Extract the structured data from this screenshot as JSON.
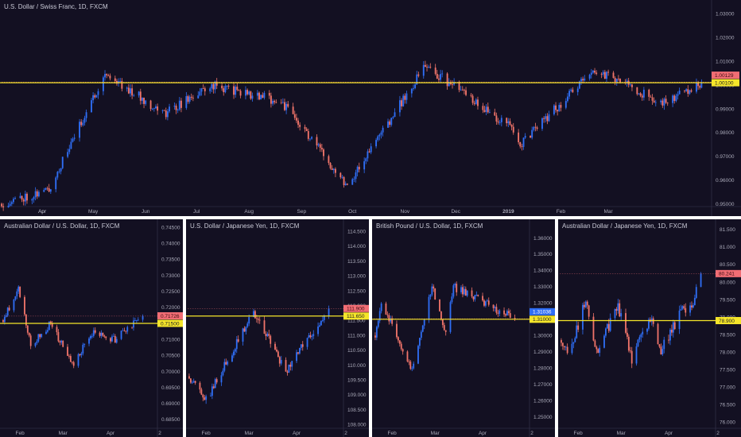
{
  "colors": {
    "background": "#131022",
    "up_candle": "#2f6ef5",
    "down_candle": "#f0746a",
    "level_line": "#f5e52a",
    "price_tag": "#f16d74",
    "price_tag_blue": "#2f6ef5",
    "divider": "#ffffff"
  },
  "charts": [
    {
      "id": "usdchf",
      "title": "U.S. Dollar / Swiss Franc, 1D, FXCM",
      "y_ticks": [
        "1.03000",
        "1.02000",
        "1.01000",
        "1.00000",
        "0.99000",
        "0.98000",
        "0.97000",
        "0.96000",
        "0.95000"
      ],
      "x_labels": [
        "Apr",
        "May",
        "Jun",
        "Jul",
        "Aug",
        "Sep",
        "Oct",
        "Nov",
        "Dec",
        "2019",
        "Feb",
        "Mar",
        "Apr"
      ],
      "level_tag": "1.00100",
      "price_tag": "1.00129",
      "chart_data": {
        "type": "candlestick",
        "ylim": [
          0.9495,
          1.0345
        ],
        "level": 1.001,
        "last_price": 1.00129,
        "x_range": [
          "2018-03-08",
          "2019-04-30"
        ],
        "segments": [
          {
            "from": "2018-03-08",
            "to": "2018-04-05",
            "start": 0.95,
            "end": 0.956
          },
          {
            "from": "2018-04-05",
            "to": "2018-05-08",
            "start": 0.956,
            "end": 1.005
          },
          {
            "from": "2018-05-08",
            "to": "2018-06-12",
            "start": 1.005,
            "end": 0.988
          },
          {
            "from": "2018-06-12",
            "to": "2018-07-10",
            "start": 0.988,
            "end": 1.0
          },
          {
            "from": "2018-07-10",
            "to": "2018-08-20",
            "start": 1.0,
            "end": 0.993
          },
          {
            "from": "2018-08-20",
            "to": "2018-09-28",
            "start": 0.993,
            "end": 0.958
          },
          {
            "from": "2018-09-28",
            "to": "2018-11-13",
            "start": 0.958,
            "end": 1.008
          },
          {
            "from": "2018-11-13",
            "to": "2019-01-03",
            "start": 1.008,
            "end": 0.982
          },
          {
            "from": "2019-01-03",
            "to": "2019-01-08",
            "start": 0.982,
            "end": 0.975
          },
          {
            "from": "2019-01-08",
            "to": "2019-02-20",
            "start": 0.975,
            "end": 1.006
          },
          {
            "from": "2019-02-20",
            "to": "2019-03-08",
            "start": 1.006,
            "end": 1.002
          },
          {
            "from": "2019-03-08",
            "to": "2019-04-01",
            "start": 1.002,
            "end": 0.992
          },
          {
            "from": "2019-04-01",
            "to": "2019-04-25",
            "start": 0.992,
            "end": 1.0013
          }
        ]
      }
    },
    {
      "id": "audusd",
      "title": "Australian Dollar / U.S. Dollar, 1D, FXCM",
      "y_ticks": [
        "0.74500",
        "0.74000",
        "0.73500",
        "0.73000",
        "0.72500",
        "0.72000",
        "0.71500",
        "0.71000",
        "0.70500",
        "0.70000",
        "0.69500",
        "0.69000",
        "0.68500"
      ],
      "x_labels": [
        "Feb",
        "Mar",
        "Apr",
        "2"
      ],
      "level_tag": "0.71500",
      "price_tag": "0.71726",
      "chart_data": {
        "type": "candlestick",
        "ylim": [
          0.6825,
          0.7465
        ],
        "level": 0.715,
        "last_price": 0.71726,
        "x_range": [
          "2019-01-20",
          "2019-04-30"
        ],
        "segments": [
          {
            "from": "2019-01-20",
            "to": "2019-01-31",
            "start": 0.715,
            "end": 0.726
          },
          {
            "from": "2019-01-31",
            "to": "2019-02-08",
            "start": 0.726,
            "end": 0.708
          },
          {
            "from": "2019-02-08",
            "to": "2019-02-21",
            "start": 0.708,
            "end": 0.715
          },
          {
            "from": "2019-02-21",
            "to": "2019-03-07",
            "start": 0.715,
            "end": 0.702
          },
          {
            "from": "2019-03-07",
            "to": "2019-03-20",
            "start": 0.702,
            "end": 0.712
          },
          {
            "from": "2019-03-20",
            "to": "2019-04-04",
            "start": 0.712,
            "end": 0.71
          },
          {
            "from": "2019-04-04",
            "to": "2019-04-22",
            "start": 0.71,
            "end": 0.7173
          }
        ]
      }
    },
    {
      "id": "usdjpy",
      "title": "U.S. Dollar / Japanese Yen, 1D, FXCM",
      "y_ticks": [
        "114.500",
        "114.000",
        "113.500",
        "113.000",
        "112.500",
        "112.000",
        "111.500",
        "111.000",
        "110.500",
        "110.000",
        "109.500",
        "109.000",
        "108.500",
        "108.000"
      ],
      "x_labels": [
        "Feb",
        "Mar",
        "Apr",
        "2"
      ],
      "level_tag": "111.650",
      "price_tag": "111.900",
      "chart_data": {
        "type": "candlestick",
        "ylim": [
          107.9,
          114.8
        ],
        "level": 111.65,
        "last_price": 111.9,
        "x_range": [
          "2019-01-20",
          "2019-04-30"
        ],
        "segments": [
          {
            "from": "2019-01-20",
            "to": "2019-02-01",
            "start": 109.7,
            "end": 108.8
          },
          {
            "from": "2019-02-01",
            "to": "2019-03-04",
            "start": 108.8,
            "end": 111.8
          },
          {
            "from": "2019-03-04",
            "to": "2019-03-25",
            "start": 111.8,
            "end": 109.8
          },
          {
            "from": "2019-03-25",
            "to": "2019-04-22",
            "start": 109.8,
            "end": 111.9
          }
        ]
      }
    },
    {
      "id": "gbpusd",
      "title": "British Pound / U.S. Dollar, 1D, FXCM",
      "y_ticks": [
        "1.36000",
        "1.35000",
        "1.34000",
        "1.33000",
        "1.32000",
        "1.31000",
        "1.30000",
        "1.29000",
        "1.28000",
        "1.27000",
        "1.26000",
        "1.25000"
      ],
      "x_labels": [
        "Feb",
        "Mar",
        "Apr",
        "2"
      ],
      "level_tag": "1.31000",
      "price_tag": "1.31036",
      "chart_data": {
        "type": "candlestick",
        "ylim": [
          1.2435,
          1.3695
        ],
        "level": 1.31,
        "last_price": 1.31036,
        "x_range": [
          "2019-01-20",
          "2019-04-30"
        ],
        "segments": [
          {
            "from": "2019-01-20",
            "to": "2019-01-25",
            "start": 1.295,
            "end": 1.32
          },
          {
            "from": "2019-01-25",
            "to": "2019-02-14",
            "start": 1.32,
            "end": 1.28
          },
          {
            "from": "2019-02-14",
            "to": "2019-02-27",
            "start": 1.28,
            "end": 1.33
          },
          {
            "from": "2019-02-27",
            "to": "2019-03-08",
            "start": 1.33,
            "end": 1.302
          },
          {
            "from": "2019-03-08",
            "to": "2019-03-13",
            "start": 1.302,
            "end": 1.33
          },
          {
            "from": "2019-03-13",
            "to": "2019-04-22",
            "start": 1.33,
            "end": 1.3104
          }
        ]
      }
    },
    {
      "id": "audjpy",
      "title": "Australian Dollar / Japanese Yen, 1D, FXCM",
      "y_ticks": [
        "81.500",
        "81.000",
        "80.500",
        "80.000",
        "79.500",
        "79.000",
        "78.500",
        "78.000",
        "77.500",
        "77.000",
        "76.500",
        "76.000"
      ],
      "x_labels": [
        "Feb",
        "Mar",
        "Apr",
        "2"
      ],
      "level_tag": "78.900",
      "price_tag": "80.241",
      "chart_data": {
        "type": "candlestick",
        "ylim": [
          75.85,
          81.7
        ],
        "level": 78.9,
        "last_price": 80.241,
        "x_range": [
          "2019-01-20",
          "2019-04-30"
        ],
        "segments": [
          {
            "from": "2019-01-20",
            "to": "2019-01-27",
            "start": 78.4,
            "end": 78.0
          },
          {
            "from": "2019-01-27",
            "to": "2019-02-06",
            "start": 78.0,
            "end": 79.6
          },
          {
            "from": "2019-02-06",
            "to": "2019-02-13",
            "start": 79.6,
            "end": 78.0
          },
          {
            "from": "2019-02-13",
            "to": "2019-02-27",
            "start": 78.0,
            "end": 79.3
          },
          {
            "from": "2019-02-27",
            "to": "2019-03-08",
            "start": 79.3,
            "end": 77.8
          },
          {
            "from": "2019-03-08",
            "to": "2019-03-20",
            "start": 77.8,
            "end": 79.0
          },
          {
            "from": "2019-03-20",
            "to": "2019-03-26",
            "start": 79.0,
            "end": 78.0
          },
          {
            "from": "2019-03-26",
            "to": "2019-04-10",
            "start": 78.0,
            "end": 79.2
          },
          {
            "from": "2019-04-10",
            "to": "2019-04-17",
            "start": 79.2,
            "end": 79.4
          },
          {
            "from": "2019-04-17",
            "to": "2019-04-22",
            "start": 79.4,
            "end": 80.24
          }
        ]
      }
    }
  ]
}
